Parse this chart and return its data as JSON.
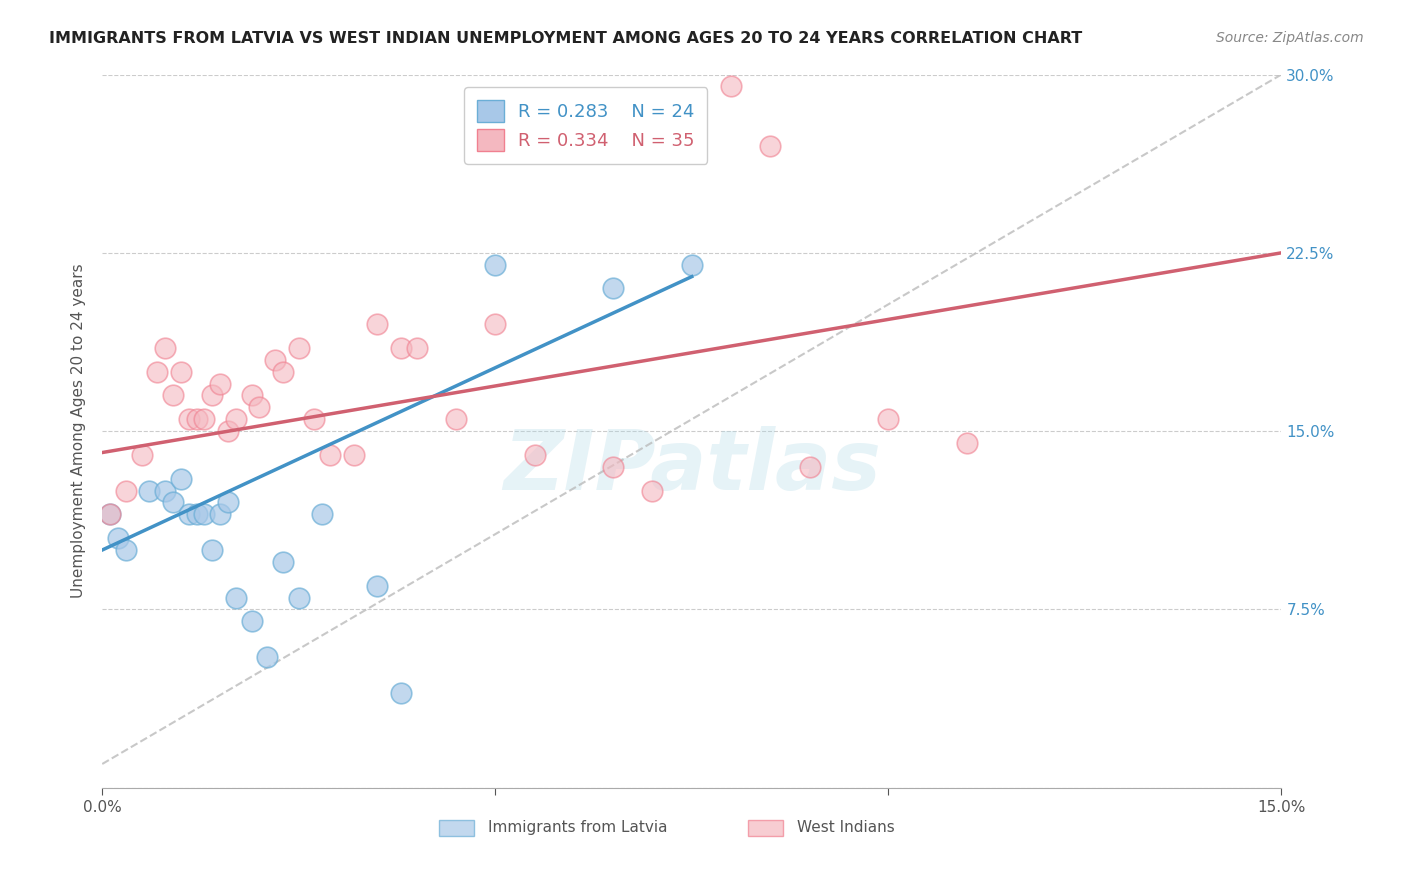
{
  "title": "IMMIGRANTS FROM LATVIA VS WEST INDIAN UNEMPLOYMENT AMONG AGES 20 TO 24 YEARS CORRELATION CHART",
  "source": "Source: ZipAtlas.com",
  "ylabel": "Unemployment Among Ages 20 to 24 years",
  "xlim": [
    0,
    0.15
  ],
  "ylim": [
    0,
    0.3
  ],
  "legend_r1": "R = 0.283",
  "legend_n1": "N = 24",
  "legend_r2": "R = 0.334",
  "legend_n2": "N = 35",
  "color_blue": "#a8c8e8",
  "color_blue_edge": "#6baed6",
  "color_pink": "#f4b8c0",
  "color_pink_edge": "#f08090",
  "color_line_blue": "#4292c6",
  "color_line_pink": "#d06070",
  "color_dashed": "#bbbbbb",
  "background_color": "#ffffff",
  "watermark": "ZIPatlas",
  "blue_x": [
    0.001,
    0.002,
    0.003,
    0.006,
    0.008,
    0.009,
    0.01,
    0.011,
    0.012,
    0.013,
    0.014,
    0.015,
    0.016,
    0.017,
    0.019,
    0.021,
    0.023,
    0.025,
    0.028,
    0.035,
    0.038,
    0.05,
    0.065,
    0.075
  ],
  "blue_y": [
    0.115,
    0.105,
    0.1,
    0.125,
    0.125,
    0.12,
    0.13,
    0.115,
    0.115,
    0.115,
    0.1,
    0.115,
    0.12,
    0.08,
    0.07,
    0.055,
    0.095,
    0.08,
    0.115,
    0.085,
    0.04,
    0.22,
    0.21,
    0.22
  ],
  "pink_x": [
    0.001,
    0.003,
    0.005,
    0.007,
    0.008,
    0.009,
    0.01,
    0.011,
    0.012,
    0.013,
    0.014,
    0.015,
    0.016,
    0.017,
    0.019,
    0.02,
    0.022,
    0.023,
    0.025,
    0.027,
    0.029,
    0.032,
    0.035,
    0.038,
    0.04,
    0.045,
    0.05,
    0.055,
    0.065,
    0.07,
    0.08,
    0.085,
    0.09,
    0.1,
    0.11
  ],
  "pink_y": [
    0.115,
    0.125,
    0.14,
    0.175,
    0.185,
    0.165,
    0.175,
    0.155,
    0.155,
    0.155,
    0.165,
    0.17,
    0.15,
    0.155,
    0.165,
    0.16,
    0.18,
    0.175,
    0.185,
    0.155,
    0.14,
    0.14,
    0.195,
    0.185,
    0.185,
    0.155,
    0.195,
    0.14,
    0.135,
    0.125,
    0.295,
    0.27,
    0.135,
    0.155,
    0.145
  ],
  "blue_line_x0": 0.0,
  "blue_line_y0": 0.1,
  "blue_line_x1": 0.075,
  "blue_line_y1": 0.215,
  "pink_line_x0": 0.0,
  "pink_line_y0": 0.141,
  "pink_line_x1": 0.15,
  "pink_line_y1": 0.225,
  "dash_line_x0": 0.0,
  "dash_line_y0": 0.01,
  "dash_line_x1": 0.15,
  "dash_line_y1": 0.3
}
